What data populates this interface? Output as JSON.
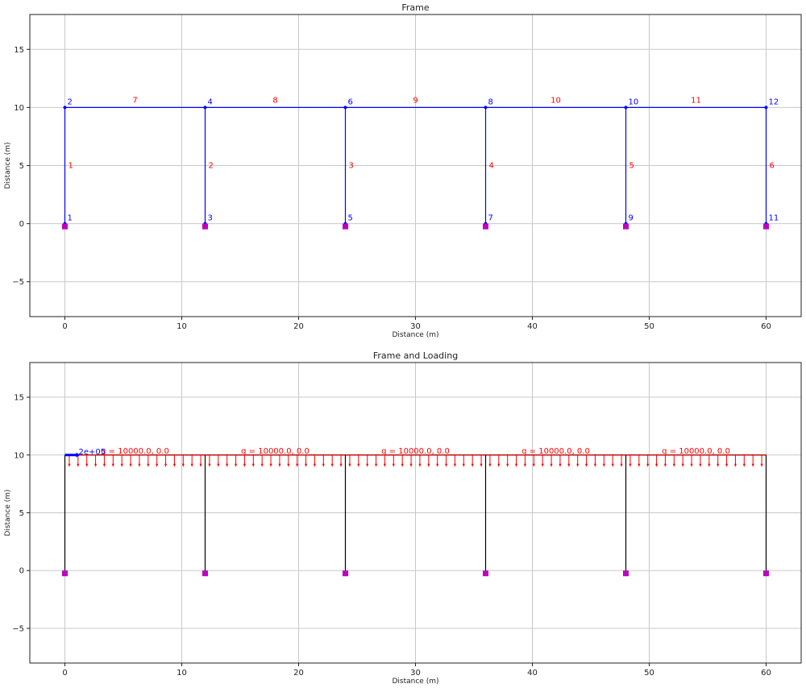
{
  "chart_data": [
    {
      "type": "frame",
      "title": "Frame",
      "xlabel": "Distance (m)",
      "ylabel": "Distance (m)",
      "xlim": [
        -3,
        63
      ],
      "ylim": [
        -8,
        18
      ],
      "xticks": [
        0,
        10,
        20,
        30,
        40,
        50,
        60
      ],
      "yticks": [
        {
          "value": -5,
          "label": "−5"
        },
        0,
        5,
        10,
        15
      ],
      "grid": true,
      "member_color": "#0000ff",
      "node_color": "#0000ff",
      "label_color": "#ff0000",
      "support_color": "#bf00bf",
      "nodes": {
        "labels": [
          "1",
          "2",
          "3",
          "4",
          "5",
          "6",
          "7",
          "8",
          "9",
          "10",
          "11",
          "12"
        ],
        "x": [
          0,
          0,
          12,
          12,
          24,
          24,
          36,
          36,
          48,
          48,
          60,
          60
        ],
        "y": [
          0,
          10,
          0,
          10,
          0,
          10,
          0,
          10,
          0,
          10,
          0,
          10
        ]
      },
      "members": [
        {
          "label": "1",
          "x": [
            0,
            0
          ],
          "y": [
            0,
            10
          ]
        },
        {
          "label": "2",
          "x": [
            12,
            12
          ],
          "y": [
            0,
            10
          ]
        },
        {
          "label": "3",
          "x": [
            24,
            24
          ],
          "y": [
            0,
            10
          ]
        },
        {
          "label": "4",
          "x": [
            36,
            36
          ],
          "y": [
            0,
            10
          ]
        },
        {
          "label": "5",
          "x": [
            48,
            48
          ],
          "y": [
            0,
            10
          ]
        },
        {
          "label": "6",
          "x": [
            60,
            60
          ],
          "y": [
            0,
            10
          ]
        },
        {
          "label": "7",
          "x": [
            0,
            12
          ],
          "y": [
            10,
            10
          ]
        },
        {
          "label": "8",
          "x": [
            12,
            24
          ],
          "y": [
            10,
            10
          ]
        },
        {
          "label": "9",
          "x": [
            24,
            36
          ],
          "y": [
            10,
            10
          ]
        },
        {
          "label": "10",
          "x": [
            36,
            48
          ],
          "y": [
            10,
            10
          ]
        },
        {
          "label": "11",
          "x": [
            48,
            60
          ],
          "y": [
            10,
            10
          ]
        }
      ],
      "supports": {
        "x": [
          0,
          12,
          24,
          36,
          48,
          60
        ],
        "y": [
          0,
          0,
          0,
          0,
          0,
          0
        ]
      }
    },
    {
      "type": "loading",
      "title": "Frame and Loading",
      "xlabel": "Distance (m)",
      "ylabel": "Distance (m)",
      "xlim": [
        -3,
        63
      ],
      "ylim": [
        -8,
        18
      ],
      "xticks": [
        0,
        10,
        20,
        30,
        40,
        50,
        60
      ],
      "yticks": [
        {
          "value": -5,
          "label": "−5"
        },
        0,
        5,
        10,
        15
      ],
      "grid": true,
      "member_color": "#000000",
      "load_color": "#ff0000",
      "point_load_color": "#0000ff",
      "support_color": "#bf00bf",
      "members": [
        {
          "x": [
            0,
            0
          ],
          "y": [
            0,
            10
          ]
        },
        {
          "x": [
            12,
            12
          ],
          "y": [
            0,
            10
          ]
        },
        {
          "x": [
            24,
            24
          ],
          "y": [
            0,
            10
          ]
        },
        {
          "x": [
            36,
            36
          ],
          "y": [
            0,
            10
          ]
        },
        {
          "x": [
            48,
            48
          ],
          "y": [
            0,
            10
          ]
        },
        {
          "x": [
            60,
            60
          ],
          "y": [
            0,
            10
          ]
        },
        {
          "x": [
            0,
            12
          ],
          "y": [
            10,
            10
          ]
        },
        {
          "x": [
            12,
            24
          ],
          "y": [
            10,
            10
          ]
        },
        {
          "x": [
            24,
            36
          ],
          "y": [
            10,
            10
          ]
        },
        {
          "x": [
            36,
            48
          ],
          "y": [
            10,
            10
          ]
        },
        {
          "x": [
            48,
            60
          ],
          "y": [
            10,
            10
          ]
        }
      ],
      "supports": {
        "x": [
          0,
          12,
          24,
          36,
          48,
          60
        ],
        "y": [
          0,
          0,
          0,
          0,
          0,
          0
        ]
      },
      "distributed_loads": [
        {
          "label": "q = 10000.0, 0.0",
          "x": [
            0,
            12
          ],
          "y": [
            10,
            10
          ]
        },
        {
          "label": "q = 10000.0, 0.0",
          "x": [
            12,
            24
          ],
          "y": [
            10,
            10
          ]
        },
        {
          "label": "q = 10000.0, 0.0",
          "x": [
            24,
            36
          ],
          "y": [
            10,
            10
          ]
        },
        {
          "label": "q = 10000.0, 0.0",
          "x": [
            36,
            48
          ],
          "y": [
            10,
            10
          ]
        },
        {
          "label": "q = 10000.0, 0.0",
          "x": [
            48,
            60
          ],
          "y": [
            10,
            10
          ]
        }
      ],
      "point_loads": {
        "x": [
          0
        ],
        "y": [
          10
        ],
        "values": [
          200000
        ],
        "value_labels": [
          "2e+05"
        ]
      }
    }
  ]
}
